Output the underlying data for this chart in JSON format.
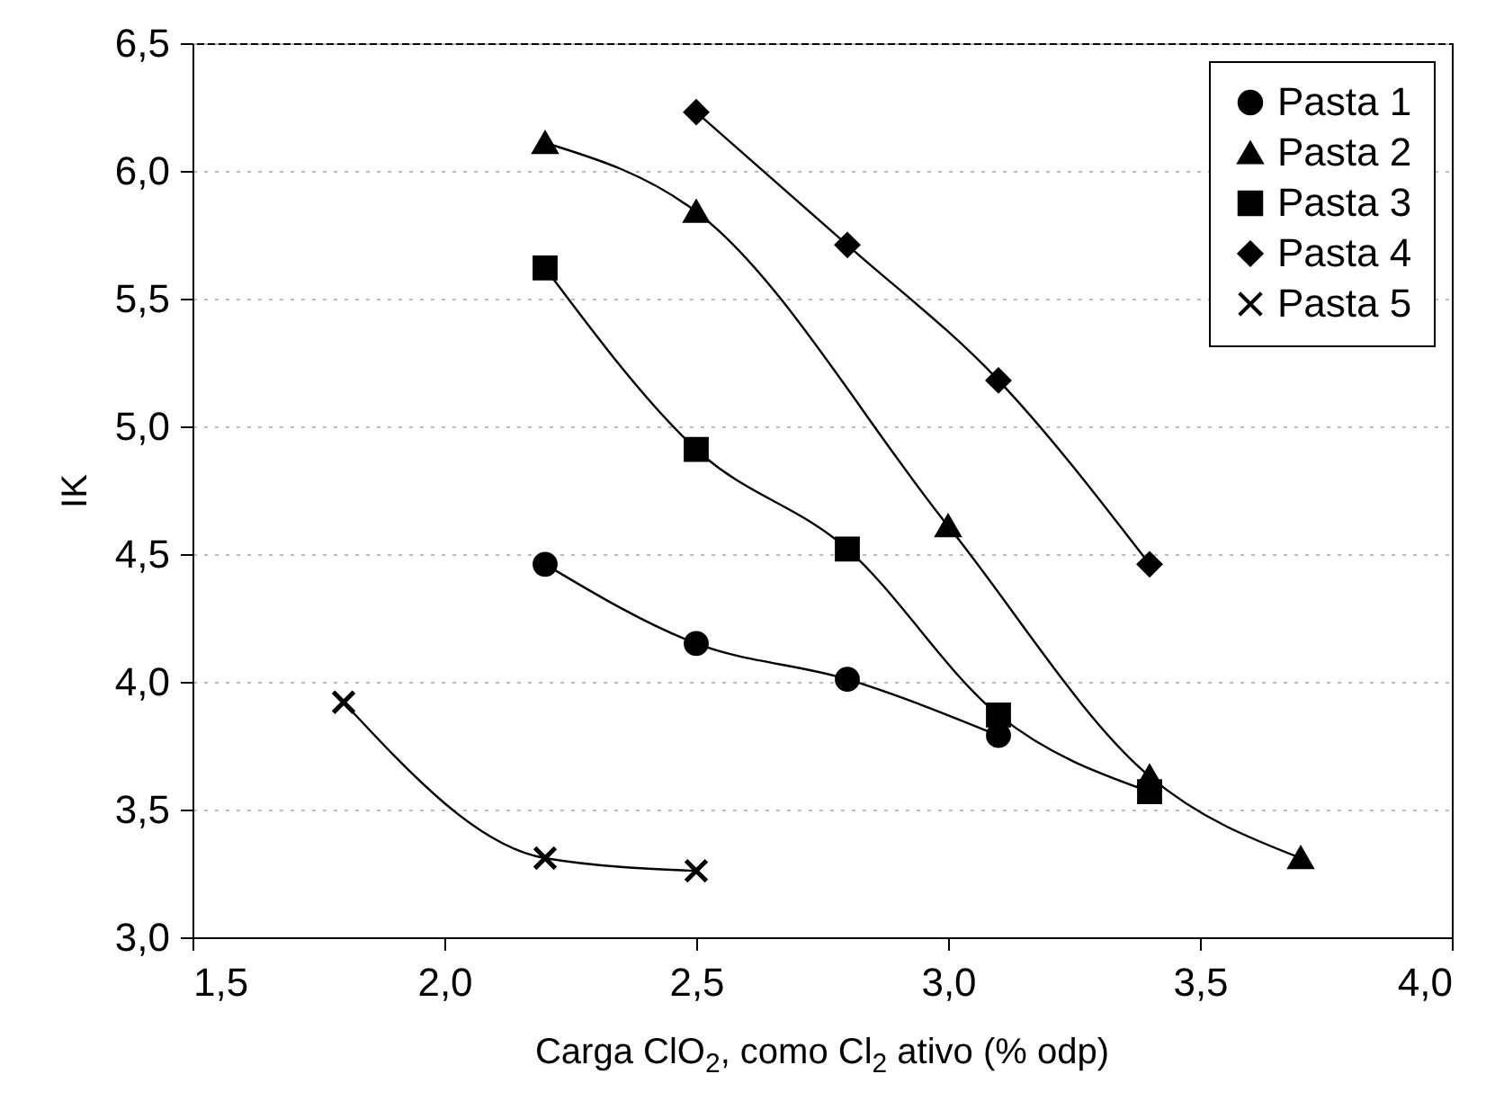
{
  "chart_data": {
    "type": "line",
    "xlabel": "Carga ClO$_{2}$, como Cl$_{2}$ ativo (% odp)",
    "ylabel": "IK",
    "xlim": [
      1.5,
      4.0
    ],
    "ylim": [
      3.0,
      6.5
    ],
    "xticks": [
      {
        "value": 1.5,
        "label": "1,5"
      },
      {
        "value": 2.0,
        "label": "2,0"
      },
      {
        "value": 2.5,
        "label": "2,5"
      },
      {
        "value": 3.0,
        "label": "3,0"
      },
      {
        "value": 3.5,
        "label": "3,5"
      },
      {
        "value": 4.0,
        "label": "4,0"
      }
    ],
    "yticks": [
      {
        "value": 3.0,
        "label": "3,0"
      },
      {
        "value": 3.5,
        "label": "3,5"
      },
      {
        "value": 4.0,
        "label": "4,0"
      },
      {
        "value": 4.5,
        "label": "4,5"
      },
      {
        "value": 5.0,
        "label": "5,0"
      },
      {
        "value": 5.5,
        "label": "5,5"
      },
      {
        "value": 6.0,
        "label": "6,0"
      },
      {
        "value": 6.5,
        "label": "6,5"
      }
    ],
    "grid": "y",
    "legend": "top right",
    "line_style": "solid",
    "series": [
      {
        "name": "Pasta 1",
        "color": "#000000",
        "marker": "circle",
        "x": [
          2.2,
          2.5,
          2.8,
          3.1
        ],
        "values": [
          4.46,
          4.15,
          4.01,
          3.79
        ]
      },
      {
        "name": "Pasta 2",
        "color": "#000000",
        "marker": "triangle",
        "x": [
          2.2,
          2.5,
          3.0,
          3.4,
          3.7
        ],
        "values": [
          6.11,
          5.84,
          4.61,
          3.63,
          3.31
        ]
      },
      {
        "name": "Pasta 3",
        "color": "#000000",
        "marker": "square",
        "x": [
          2.2,
          2.5,
          2.8,
          3.1,
          3.4
        ],
        "values": [
          5.62,
          4.91,
          4.52,
          3.87,
          3.57
        ]
      },
      {
        "name": "Pasta 4",
        "color": "#000000",
        "marker": "diamond",
        "x": [
          2.5,
          2.8,
          3.1,
          3.4
        ],
        "values": [
          6.23,
          5.71,
          5.18,
          4.46
        ]
      },
      {
        "name": "Pasta 5",
        "color": "#000000",
        "marker": "cross",
        "x": [
          1.8,
          2.2,
          2.5
        ],
        "values": [
          3.92,
          3.31,
          3.26
        ]
      }
    ]
  }
}
